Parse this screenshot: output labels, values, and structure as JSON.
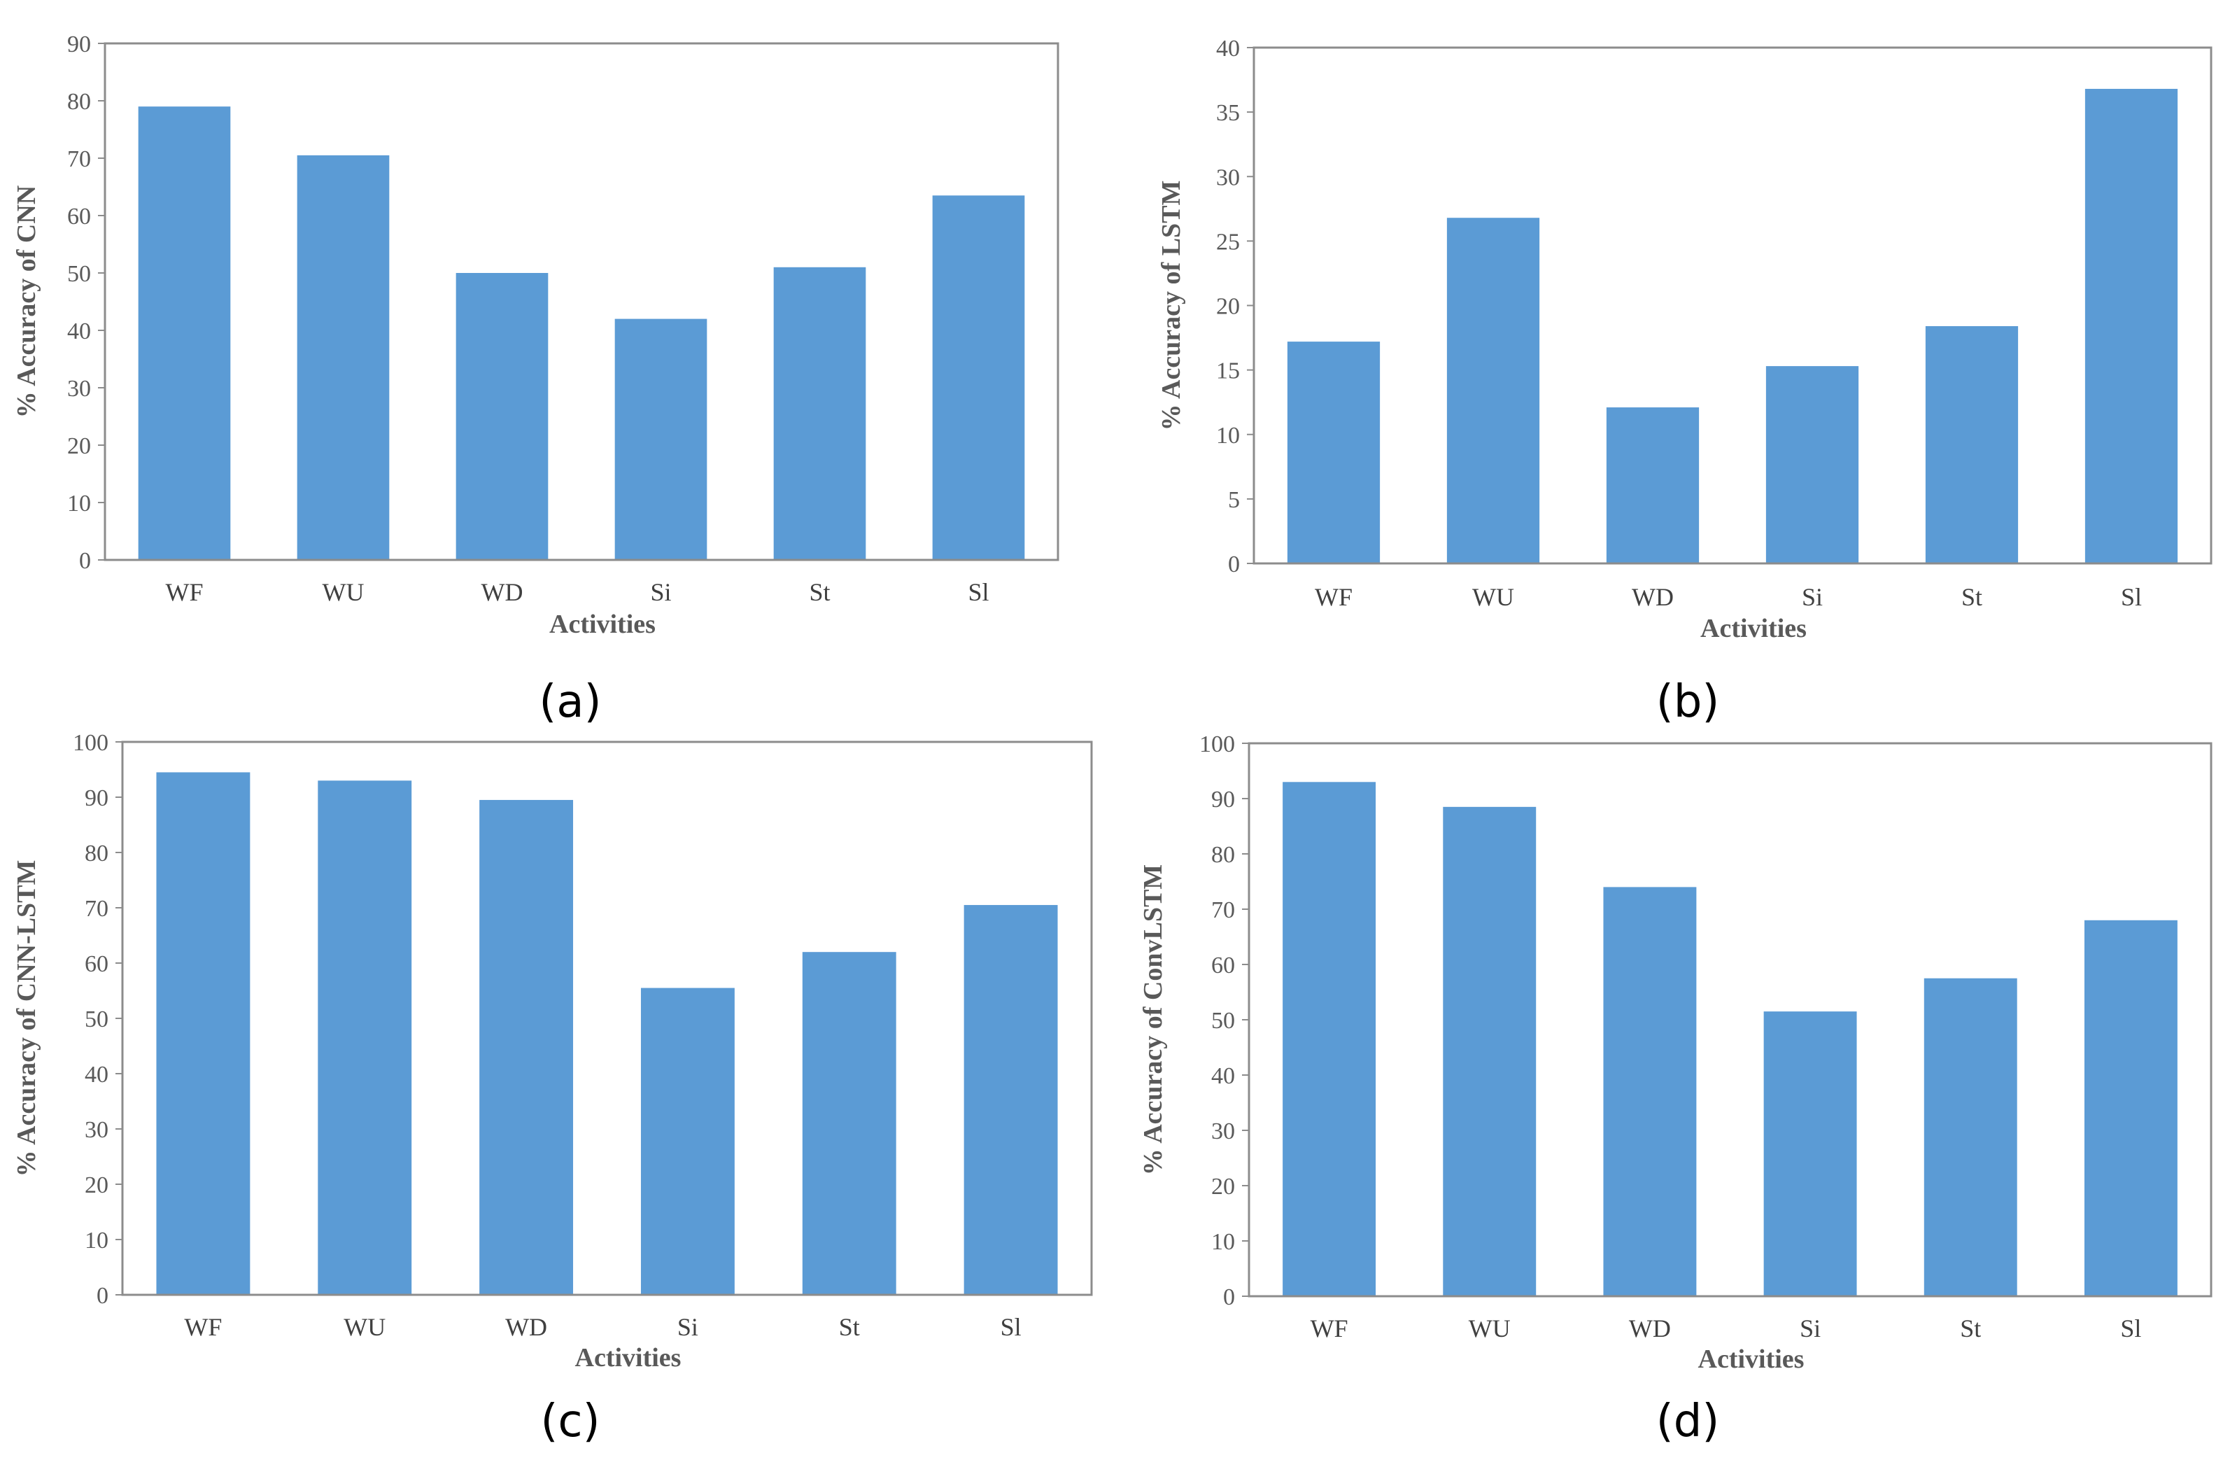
{
  "colors": {
    "bar": "#5b9bd5",
    "frame": "#8c8c8c",
    "tick_text": "#595959"
  },
  "chart_data": [
    {
      "type": "bar",
      "panel_label": "(a)",
      "title": "",
      "xlabel": "Activities",
      "ylabel": "% Accuracy of CNN",
      "categories": [
        "WF",
        "WU",
        "WD",
        "Si",
        "St",
        "Sl"
      ],
      "values": [
        79,
        70.5,
        50,
        42,
        51,
        63.5
      ],
      "ylim": [
        0,
        90
      ],
      "ytick_step": 10,
      "grid": false
    },
    {
      "type": "bar",
      "panel_label": "(b)",
      "title": "",
      "xlabel": "Activities",
      "ylabel": "% Accuracy of LSTM",
      "categories": [
        "WF",
        "WU",
        "WD",
        "Si",
        "St",
        "Sl"
      ],
      "values": [
        17.2,
        26.8,
        12.1,
        15.3,
        18.4,
        36.8
      ],
      "ylim": [
        0,
        40
      ],
      "ytick_step": 5,
      "grid": false
    },
    {
      "type": "bar",
      "panel_label": "(c)",
      "title": "",
      "xlabel": "Activities",
      "ylabel": "% Accuracy of CNN-LSTM",
      "categories": [
        "WF",
        "WU",
        "WD",
        "Si",
        "St",
        "Sl"
      ],
      "values": [
        94.5,
        93,
        89.5,
        55.5,
        62,
        70.5
      ],
      "ylim": [
        0,
        100
      ],
      "ytick_step": 10,
      "grid": false
    },
    {
      "type": "bar",
      "panel_label": "(d)",
      "title": "",
      "xlabel": "Activities",
      "ylabel": "% Accuracy of ConvLSTM",
      "categories": [
        "WF",
        "WU",
        "WD",
        "Si",
        "St",
        "Sl"
      ],
      "values": [
        93,
        88.5,
        74,
        51.5,
        57.5,
        68
      ],
      "ylim": [
        0,
        100
      ],
      "ytick_step": 10,
      "grid": false
    }
  ]
}
